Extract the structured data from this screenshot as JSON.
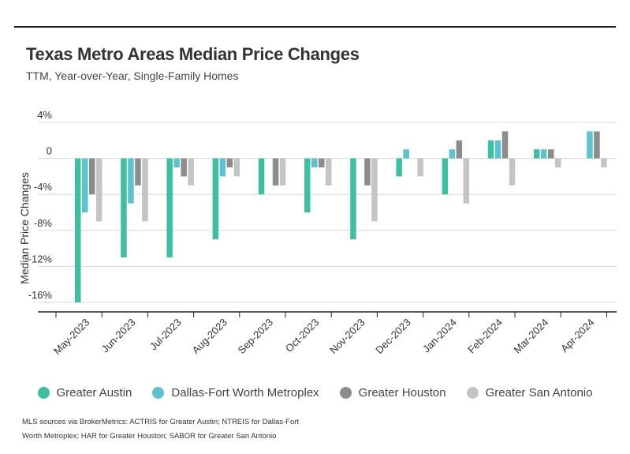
{
  "title": "Texas Metro Areas Median Price Changes",
  "subtitle": "TTM, Year-over-Year, Single-Family Homes",
  "source_note": "MLS sources via BrokerMetrics: ACTRIS for Greater Austin; NTREIS for Dallas-Fort Worth Metroplex; HAR for Greater Houston; SABOR for Greater San Antonio",
  "chart_data": {
    "type": "bar",
    "title": "Texas Metro Areas Median Price Changes",
    "subtitle": "TTM, Year-over-Year, Single-Family Homes",
    "xlabel": "",
    "ylabel": "Median Price Changes",
    "ylim": [
      -16,
      4
    ],
    "yticks": [
      4,
      0,
      -4,
      -8,
      -12,
      -16
    ],
    "ytick_labels": [
      "4%",
      "0",
      "-4%",
      "-8%",
      "-12%",
      "-16%"
    ],
    "grid": true,
    "legend_position": "bottom",
    "categories": [
      "May-2023",
      "Jun-2023",
      "Jul-2023",
      "Aug-2023",
      "Sep-2023",
      "Oct-2023",
      "Nov-2023",
      "Dec-2023",
      "Jan-2024",
      "Feb-2024",
      "Mar-2024",
      "Apr-2024"
    ],
    "series": [
      {
        "name": "Greater Austin",
        "color": "#3dbfa0",
        "values": [
          -16,
          -11,
          -11,
          -9,
          -4,
          -6,
          -9,
          -2,
          -4,
          2,
          1,
          0
        ]
      },
      {
        "name": "Dallas-Fort Worth Metroplex",
        "color": "#5cc2cf",
        "values": [
          -6,
          -5,
          -1,
          -2,
          0,
          -1,
          0,
          1,
          1,
          2,
          1,
          3
        ]
      },
      {
        "name": "Greater Houston",
        "color": "#8c8c8c",
        "values": [
          -4,
          -3,
          -2,
          -1,
          -3,
          -1,
          -3,
          0,
          2,
          3,
          1,
          3
        ]
      },
      {
        "name": "Greater San Antonio",
        "color": "#c4c4c4",
        "values": [
          -7,
          -7,
          -3,
          -2,
          -3,
          -3,
          -7,
          -2,
          -5,
          -3,
          -1,
          -1
        ]
      }
    ]
  }
}
